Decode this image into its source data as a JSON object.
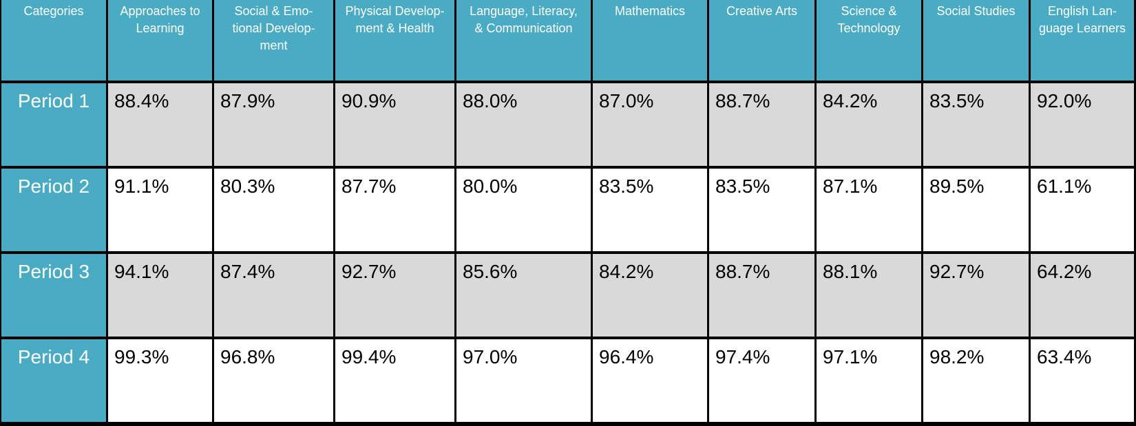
{
  "chart_data": {
    "type": "table",
    "columns": [
      "Categories",
      "Approaches to Learning",
      "Social & Emotional Development",
      "Physical Development & Health",
      "Language, Literacy, & Communication",
      "Mathematics",
      "Creative Arts",
      "Science & Technology",
      "Social Studies",
      "English Language Learners"
    ],
    "column_display": [
      "Categories",
      "Approaches to\nLearning",
      "Social & Emo-\ntional Develop-\nment",
      "Physical Develop-\nment & Health",
      "Language, Literacy,\n& Communication",
      "Mathematics",
      "Creative Arts",
      "Science &\nTechnology",
      "Social Studies",
      "English Lan-\nguage Learners"
    ],
    "rows": [
      {
        "label": "Period 1",
        "values": [
          "88.4%",
          "87.9%",
          "90.9%",
          "88.0%",
          "87.0%",
          "88.7%",
          "84.2%",
          "83.5%",
          "92.0%"
        ]
      },
      {
        "label": "Period 2",
        "values": [
          "91.1%",
          "80.3%",
          "87.7%",
          "80.0%",
          "83.5%",
          "83.5%",
          "87.1%",
          "89.5%",
          "61.1%"
        ]
      },
      {
        "label": "Period 3",
        "values": [
          "94.1%",
          "87.4%",
          "92.7%",
          "85.6%",
          "84.2%",
          "88.7%",
          "88.1%",
          "92.7%",
          "64.2%"
        ]
      },
      {
        "label": "Period 4",
        "values": [
          "99.3%",
          "96.8%",
          "99.4%",
          "97.0%",
          "96.4%",
          "97.4%",
          "97.1%",
          "98.2%",
          "63.4%"
        ]
      }
    ],
    "colors": {
      "header": "#4aabc5",
      "shaded_row": "#d9d9d9",
      "plain_row": "#ffffff",
      "grid_lines": "#000000"
    }
  }
}
